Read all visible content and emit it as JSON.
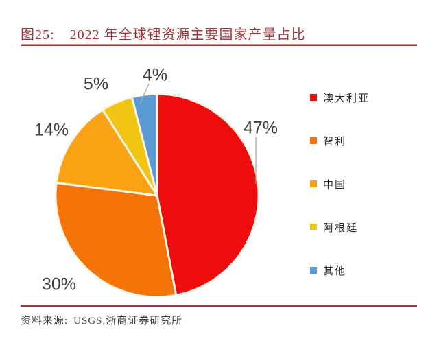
{
  "figure": {
    "id_label": "图25:",
    "title": "2022 年全球锂资源主要国家产量占比"
  },
  "source": {
    "label": "资料来源:",
    "text": "USGS,浙商证券研究所"
  },
  "colors": {
    "title_text": "#a13539",
    "divider_rule": "#8e4047",
    "data_label_text": "#3d3d3d",
    "leader_line": "#a6a6a6",
    "pie_separator": "#fcf7e8",
    "background": "#ffffff"
  },
  "chart_data": {
    "type": "pie",
    "title": "2022 年全球锂资源主要国家产量占比",
    "start_angle_deg": 0,
    "direction": "clockwise",
    "legend_position": "right",
    "unit": "%",
    "slices": [
      {
        "label": "澳大利亚",
        "value": 47,
        "display": "47%",
        "color": "#ee0c0c"
      },
      {
        "label": "智利",
        "value": 30,
        "display": "30%",
        "color": "#f57307"
      },
      {
        "label": "中国",
        "value": 14,
        "display": "14%",
        "color": "#f9a213"
      },
      {
        "label": "阿根廷",
        "value": 5,
        "display": "5%",
        "color": "#f1c513"
      },
      {
        "label": "其他",
        "value": 4,
        "display": "4%",
        "color": "#5b9bd5"
      }
    ]
  }
}
